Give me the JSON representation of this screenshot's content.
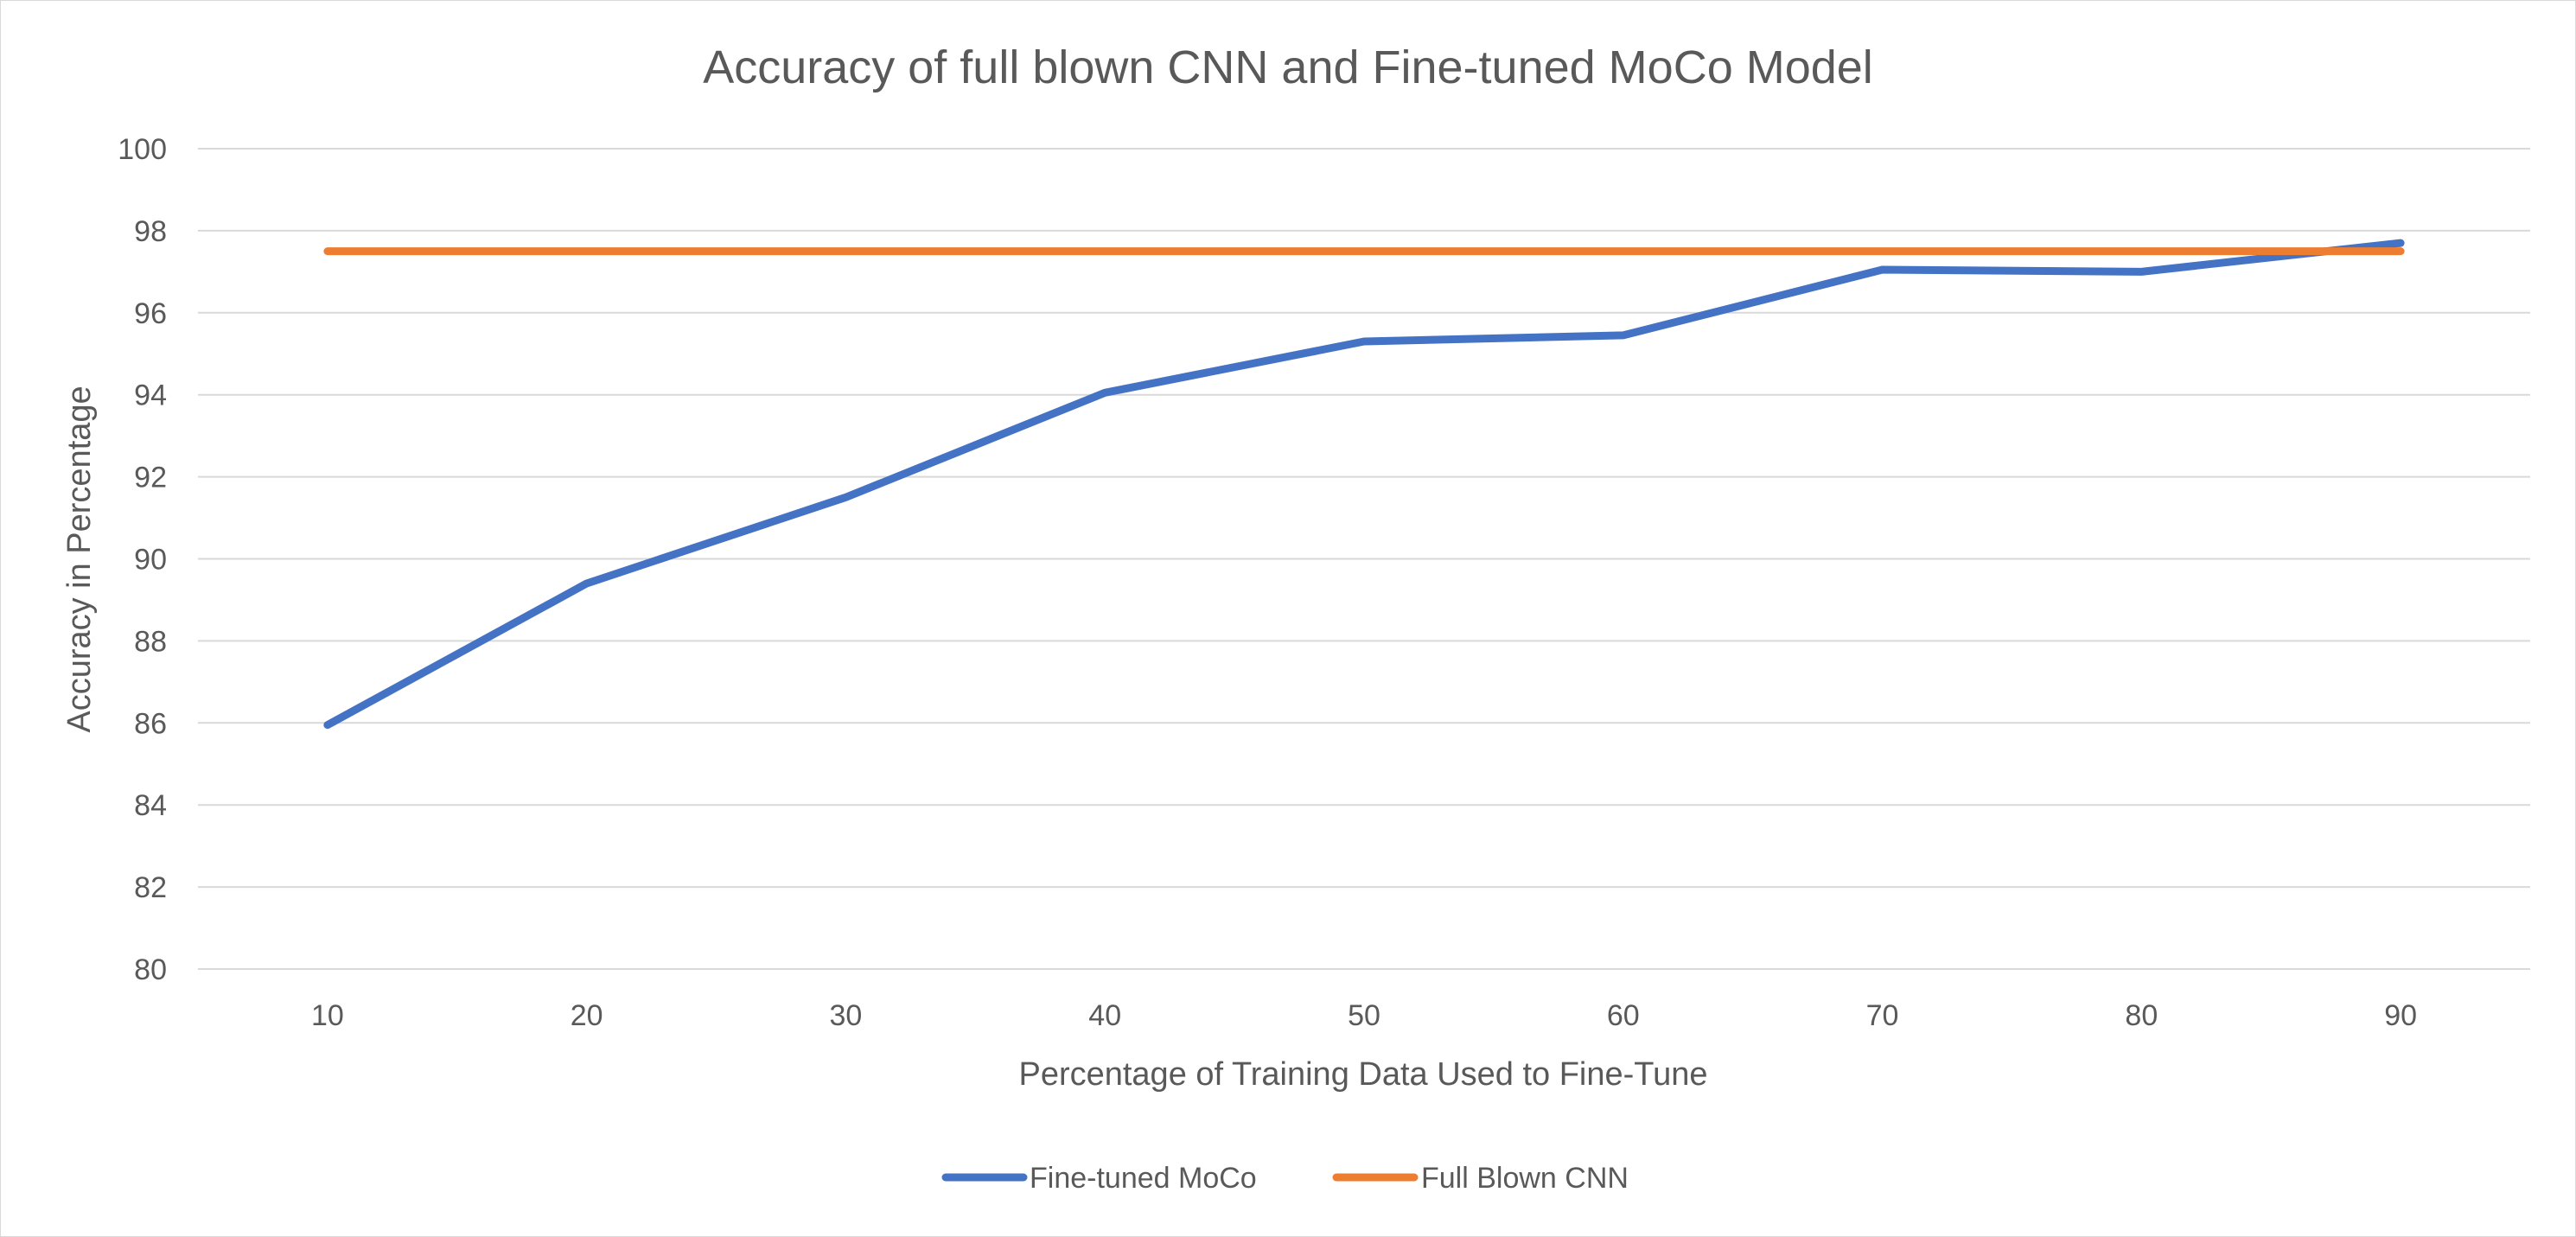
{
  "chart_data": {
    "type": "line",
    "title": "Accuracy of full blown CNN and Fine-tuned MoCo Model",
    "xlabel": "Percentage of Training Data Used to Fine-Tune",
    "ylabel": "Accuracy in Percentage",
    "categories": [
      "10",
      "20",
      "30",
      "40",
      "50",
      "60",
      "70",
      "80",
      "90"
    ],
    "ylim": [
      80,
      100
    ],
    "yticks": [
      "80",
      "82",
      "84",
      "86",
      "88",
      "90",
      "92",
      "94",
      "96",
      "98",
      "100"
    ],
    "grid": "horizontal",
    "legend_position": "bottom",
    "series": [
      {
        "name": "Fine-tuned MoCo",
        "color": "#4472C4",
        "values": [
          85.95,
          89.4,
          91.5,
          94.05,
          95.3,
          95.45,
          97.05,
          97.0,
          97.7
        ]
      },
      {
        "name": "Full Blown CNN",
        "color": "#ED7D31",
        "values": [
          97.5,
          97.5,
          97.5,
          97.5,
          97.5,
          97.5,
          97.5,
          97.5,
          97.5
        ]
      }
    ]
  }
}
